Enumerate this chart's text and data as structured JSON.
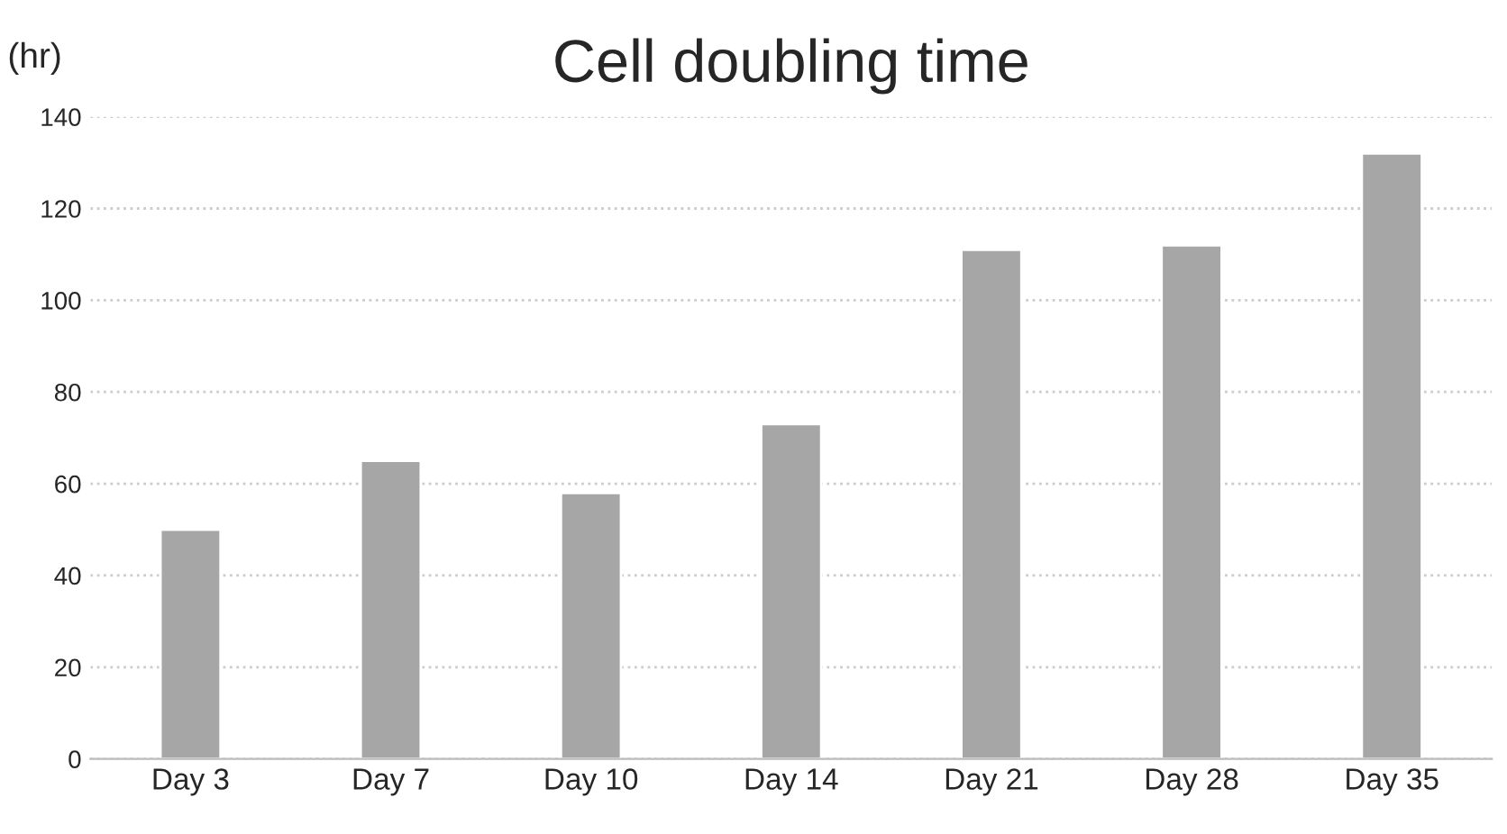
{
  "chart_data": {
    "type": "bar",
    "title": "Cell doubling time",
    "ylabel": "(hr)",
    "categories": [
      "Day 3",
      "Day 7",
      "Day 10",
      "Day 14",
      "Day 21",
      "Day 28",
      "Day 35"
    ],
    "values": [
      50,
      65,
      58,
      73,
      111,
      112,
      132
    ],
    "color": "#a6a6a6",
    "ylim": [
      0,
      140
    ],
    "yticks": [
      0,
      20,
      40,
      60,
      80,
      100,
      120,
      140
    ],
    "grid": "y"
  }
}
